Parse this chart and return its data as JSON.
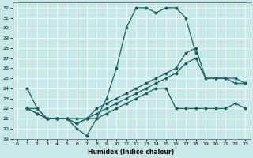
{
  "xlabel": "Humidex (Indice chaleur)",
  "bg_color": "#c8e8e8",
  "line_color": "#1a6060",
  "xlim": [
    -0.5,
    23.5
  ],
  "ylim": [
    19,
    32.5
  ],
  "xticks": [
    0,
    1,
    2,
    3,
    4,
    5,
    6,
    7,
    8,
    9,
    10,
    11,
    12,
    13,
    14,
    15,
    16,
    17,
    18,
    19,
    20,
    21,
    22,
    23
  ],
  "yticks": [
    19,
    20,
    21,
    22,
    23,
    24,
    25,
    26,
    27,
    28,
    29,
    30,
    31,
    32
  ],
  "line1_x": [
    1,
    2,
    3,
    4,
    5,
    6,
    7,
    8,
    9,
    10,
    11,
    12,
    13,
    14,
    15,
    16,
    17,
    18
  ],
  "line1_y": [
    24,
    22,
    21,
    21,
    21,
    20,
    19.3,
    21,
    23,
    26,
    30,
    32,
    32,
    31.5,
    32,
    32,
    31,
    27.5
  ],
  "line2_x": [
    1,
    2,
    3,
    4,
    5,
    6,
    7,
    8,
    9,
    10,
    11,
    12,
    13,
    14,
    15,
    16,
    17,
    18,
    19,
    20,
    21,
    22,
    23
  ],
  "line2_y": [
    22,
    22,
    21,
    21,
    21,
    21,
    21,
    21,
    21.5,
    22,
    22.5,
    23,
    23.5,
    24,
    24,
    22,
    22,
    22,
    22,
    22,
    22,
    22.5,
    22
  ],
  "line3_x": [
    1,
    2,
    3,
    4,
    5,
    6,
    7,
    8,
    9,
    10,
    11,
    12,
    13,
    14,
    15,
    16,
    17,
    18,
    19,
    20,
    21,
    22,
    23
  ],
  "line3_y": [
    22,
    21.5,
    21,
    21,
    21,
    20.5,
    21,
    22,
    22.5,
    23,
    23.5,
    24,
    24.5,
    25,
    25.5,
    26,
    27.5,
    28,
    25,
    25,
    25,
    24.5,
    24.5
  ],
  "line4_x": [
    1,
    2,
    3,
    4,
    5,
    6,
    7,
    8,
    9,
    10,
    11,
    12,
    13,
    14,
    15,
    16,
    17,
    18,
    19,
    20,
    21,
    22,
    23
  ],
  "line4_y": [
    22,
    21.5,
    21,
    21,
    21,
    20.5,
    21,
    21.5,
    22,
    22.5,
    23,
    23.5,
    24,
    24.5,
    25,
    25.5,
    26.5,
    27,
    25,
    25,
    25,
    25,
    24.5
  ]
}
